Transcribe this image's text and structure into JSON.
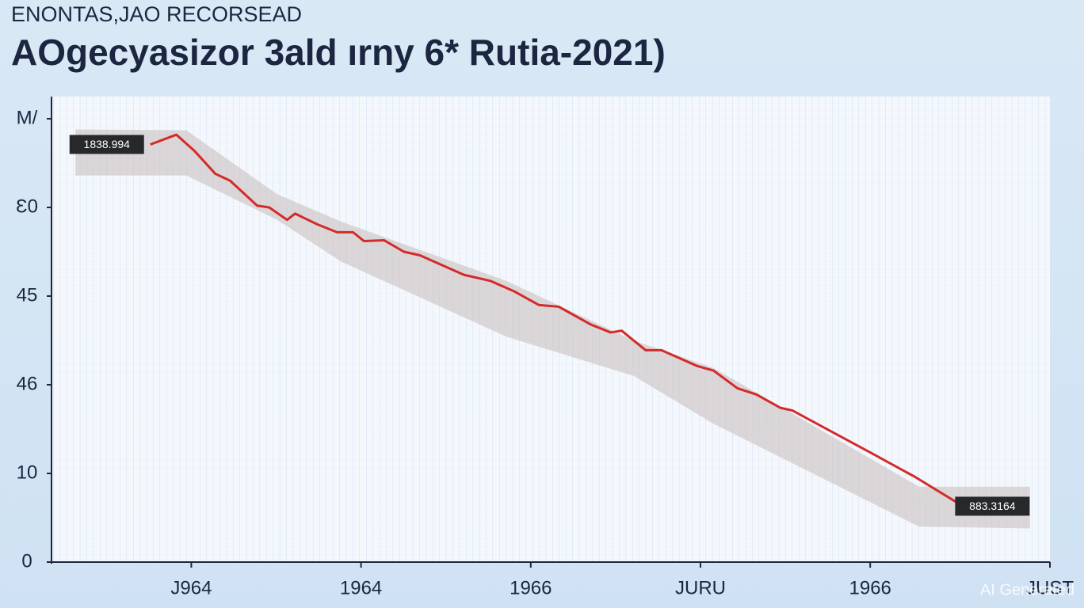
{
  "chart_data": {
    "type": "line",
    "kicker": "ENONTAS,JAO RECORSEAD",
    "title": "AOgecyasizor 3ald ırny 6* Rutia-2021)",
    "watermark": "AI Generated",
    "color": "#d42a2a",
    "x": [
      9.9,
      12.5,
      14.3,
      16.4,
      17.9,
      20.6,
      21.8,
      23.6,
      24.4,
      26.6,
      28.6,
      30.2,
      31.3,
      33.3,
      35.3,
      36.9,
      41.3,
      44.0,
      46.4,
      48.8,
      50.8,
      54.0,
      56.0,
      57.1,
      59.5,
      61.1,
      64.7,
      66.3,
      68.7,
      70.6,
      73.0,
      74.2,
      82.1,
      86.5,
      91.3
    ],
    "values": [
      47.1,
      48.2,
      46.4,
      43.8,
      43.0,
      40.2,
      40.0,
      38.6,
      39.3,
      38.1,
      37.2,
      37.2,
      36.2,
      36.3,
      35.0,
      34.6,
      32.4,
      31.7,
      30.5,
      29.0,
      28.8,
      26.8,
      25.9,
      26.1,
      23.9,
      23.9,
      22.1,
      21.6,
      19.6,
      18.9,
      17.4,
      17.1,
      12.3,
      9.6,
      6.3
    ],
    "band": {
      "color": "#c9bfbf",
      "x": [
        2.4,
        13.5,
        22.6,
        29.0,
        45.6,
        58.3,
        66.3,
        86.9,
        98.0
      ],
      "lower": [
        43.6,
        43.6,
        38.6,
        33.9,
        25.4,
        21.0,
        15.6,
        4.0,
        3.8
      ],
      "upper": [
        48.8,
        48.7,
        41.5,
        38.4,
        31.7,
        25.0,
        21.9,
        8.5,
        8.5
      ]
    },
    "annotations": [
      {
        "text": "1838.994"
      },
      {
        "text": "883.3164"
      }
    ],
    "xlim": [
      0,
      100
    ],
    "xticks": [
      {
        "value": 14,
        "label": "J964"
      },
      {
        "value": 31,
        "label": "1964"
      },
      {
        "value": 48,
        "label": "1966"
      },
      {
        "value": 65,
        "label": "JURU"
      },
      {
        "value": 82,
        "label": "1966"
      },
      {
        "value": 100,
        "label": "JUST"
      }
    ],
    "ylim": [
      0,
      52.5
    ],
    "yticks": [
      0,
      10,
      {
        "value": 20,
        "label": "46"
      },
      {
        "value": 30,
        "label": "45"
      },
      {
        "value": 40,
        "label": "Ɛ0"
      },
      {
        "value": 50,
        "label": "M/"
      }
    ]
  }
}
